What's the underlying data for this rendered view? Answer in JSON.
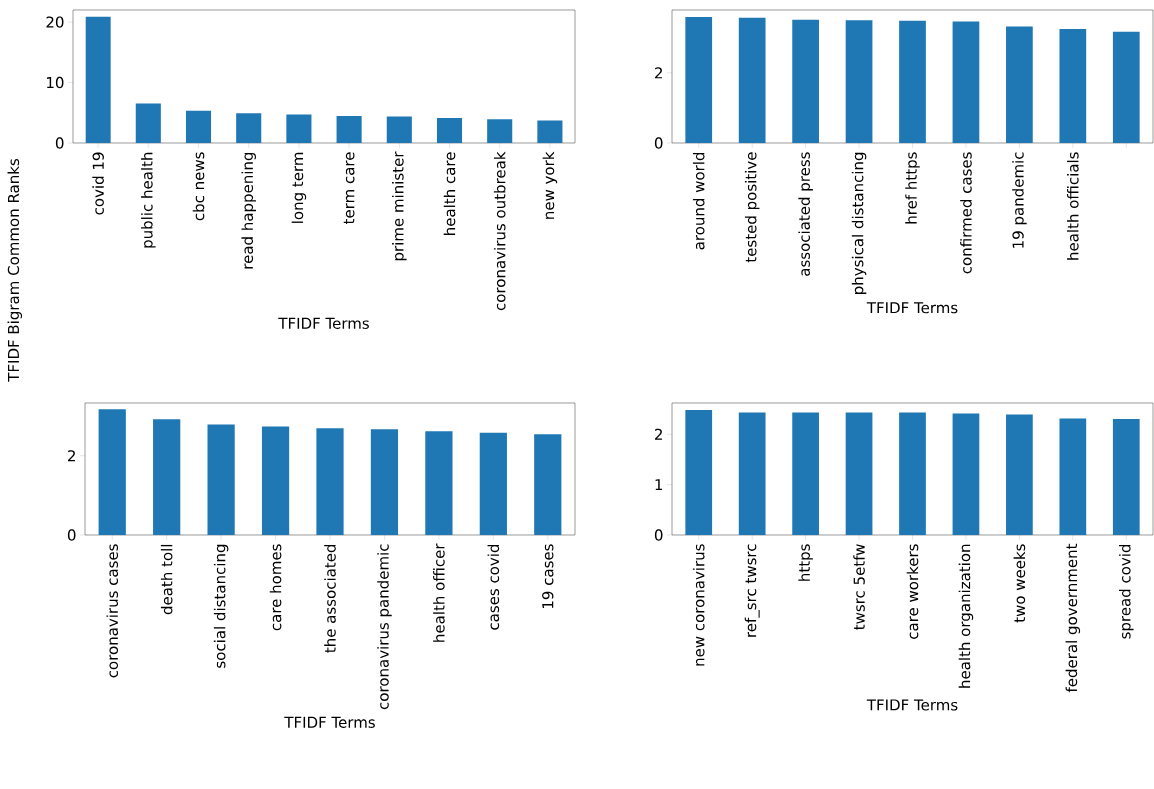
{
  "chart_data": [
    {
      "type": "bar",
      "xlabel": "TFIDF Terms",
      "ylabel": "TFIDF Bigram Common Ranks",
      "color": "#1f77b4",
      "categories": [
        "covid 19",
        "public health",
        "cbc news",
        "read happening",
        "long term",
        "term care",
        "prime minister",
        "health care",
        "coronavirus outbreak",
        "new york"
      ],
      "values": [
        20.9,
        6.55,
        5.32,
        4.93,
        4.71,
        4.48,
        4.37,
        4.15,
        3.92,
        3.7
      ],
      "ylim": [
        0,
        22
      ],
      "yticks": [
        0,
        10,
        20
      ]
    },
    {
      "type": "bar",
      "xlabel": "TFIDF Terms",
      "color": "#1f77b4",
      "categories": [
        "around world",
        "tested positive",
        "associated press",
        "physical distancing",
        "href https",
        "confirmed cases",
        "19 pandemic",
        "health officials",
        null
      ],
      "values": [
        3.59,
        3.57,
        3.51,
        3.5,
        3.48,
        3.46,
        3.32,
        3.25,
        3.17
      ],
      "ylim": [
        0,
        3.79
      ],
      "yticks": [
        0,
        2
      ]
    },
    {
      "type": "bar",
      "xlabel": "TFIDF Terms",
      "color": "#1f77b4",
      "categories": [
        "coronavirus cases",
        "death toll",
        "social distancing",
        "care homes",
        "the associated",
        "coronavirus pandemic",
        "health officer",
        "cases covid",
        "19 cases"
      ],
      "values": [
        3.17,
        2.92,
        2.79,
        2.74,
        2.69,
        2.67,
        2.62,
        2.58,
        2.54
      ],
      "ylim": [
        0,
        3.33
      ],
      "yticks": [
        0,
        2
      ]
    },
    {
      "type": "bar",
      "xlabel": "TFIDF Terms",
      "color": "#1f77b4",
      "categories": [
        "new coronavirus",
        "ref_src twsrc",
        "https",
        "twsrc 5etfw",
        "care workers",
        "health organization",
        "two weeks",
        "federal government",
        "spread covid"
      ],
      "values": [
        2.48,
        2.43,
        2.43,
        2.43,
        2.43,
        2.41,
        2.39,
        2.31,
        2.3
      ],
      "ylim": [
        0,
        2.62
      ],
      "yticks": [
        0,
        1,
        2
      ]
    }
  ]
}
